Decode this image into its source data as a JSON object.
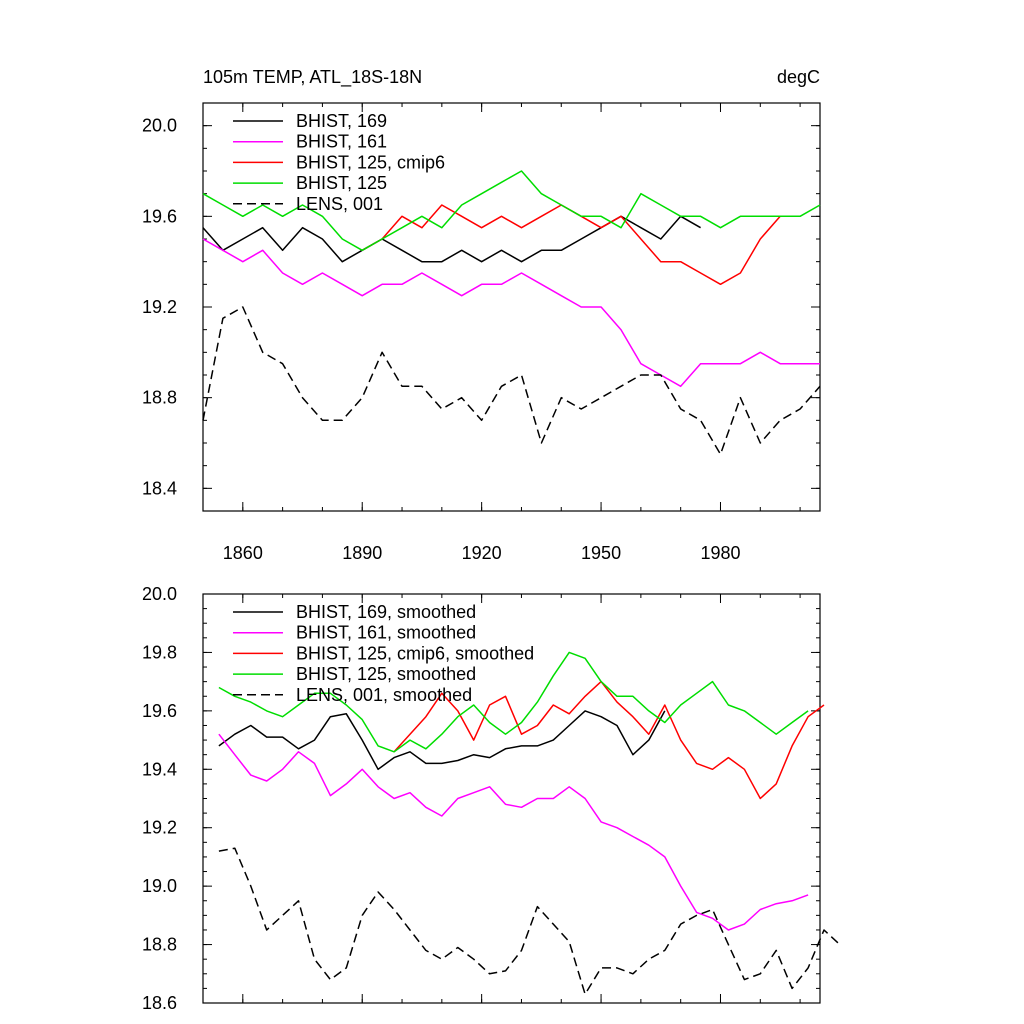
{
  "header": {
    "title": "105m TEMP, ATL_18S-18N",
    "units": "degC"
  },
  "colors": {
    "BHIST_169": "#000000",
    "BHIST_161": "#ff00ff",
    "BHIST_125_cmip6": "#ff0000",
    "BHIST_125": "#00dd00",
    "LENS_001": "#000000"
  },
  "chart_data": [
    {
      "type": "line",
      "xlim": [
        1850,
        2005
      ],
      "ylim": [
        18.3,
        20.1
      ],
      "xticks": [
        1860,
        1890,
        1920,
        1950,
        1980
      ],
      "yticks": [
        18.4,
        18.8,
        19.2,
        19.6,
        20.0
      ],
      "ytick_labels": [
        "18.4",
        "18.8",
        "19.2",
        "19.6",
        "20.0"
      ],
      "xtick_labels": [
        "1860",
        "1890",
        "1920",
        "1950",
        "1980"
      ],
      "legend_position": "top-left",
      "series": [
        {
          "name": "BHIST, 169",
          "color": "#000000",
          "dash": false,
          "x0": 1850,
          "dx": 5,
          "values": [
            19.55,
            19.45,
            19.5,
            19.55,
            19.45,
            19.55,
            19.5,
            19.4,
            19.45,
            19.5,
            19.45,
            19.4,
            19.4,
            19.45,
            19.4,
            19.45,
            19.4,
            19.45,
            19.45,
            19.5,
            19.55,
            19.6,
            19.55,
            19.5,
            19.6,
            19.55
          ]
        },
        {
          "name": "BHIST, 161",
          "color": "#ff00ff",
          "dash": false,
          "x0": 1850,
          "dx": 5,
          "values": [
            19.5,
            19.45,
            19.4,
            19.45,
            19.35,
            19.3,
            19.35,
            19.3,
            19.25,
            19.3,
            19.3,
            19.35,
            19.3,
            19.25,
            19.3,
            19.3,
            19.35,
            19.3,
            19.25,
            19.2,
            19.2,
            19.1,
            18.95,
            18.9,
            18.85,
            18.95,
            18.95,
            18.95,
            19.0,
            18.95,
            18.95,
            18.95
          ]
        },
        {
          "name": "BHIST, 125, cmip6",
          "color": "#ff0000",
          "dash": false,
          "x0": 1890,
          "dx": 5,
          "values": [
            19.45,
            19.5,
            19.6,
            19.55,
            19.65,
            19.6,
            19.55,
            19.6,
            19.55,
            19.6,
            19.65,
            19.6,
            19.55,
            19.6,
            19.5,
            19.4,
            19.4,
            19.35,
            19.3,
            19.35,
            19.5,
            19.6
          ]
        },
        {
          "name": "BHIST, 125",
          "color": "#00dd00",
          "dash": false,
          "x0": 1850,
          "dx": 5,
          "values": [
            19.7,
            19.65,
            19.6,
            19.65,
            19.6,
            19.65,
            19.6,
            19.5,
            19.45,
            19.5,
            19.55,
            19.6,
            19.55,
            19.65,
            19.7,
            19.75,
            19.8,
            19.7,
            19.65,
            19.6,
            19.6,
            19.55,
            19.7,
            19.65,
            19.6,
            19.6,
            19.55,
            19.6,
            19.6,
            19.6,
            19.6,
            19.65
          ]
        },
        {
          "name": "LENS, 001",
          "color": "#000000",
          "dash": true,
          "x0": 1850,
          "dx": 5,
          "values": [
            18.7,
            19.15,
            19.2,
            19.0,
            18.95,
            18.8,
            18.7,
            18.7,
            18.8,
            19.0,
            18.85,
            18.85,
            18.75,
            18.8,
            18.7,
            18.85,
            18.9,
            18.6,
            18.8,
            18.75,
            18.8,
            18.85,
            18.9,
            18.9,
            18.75,
            18.7,
            18.55,
            18.8,
            18.6,
            18.7,
            18.75,
            18.85
          ]
        }
      ]
    },
    {
      "type": "line",
      "xlim": [
        1850,
        2005
      ],
      "ylim": [
        18.6,
        20.0
      ],
      "xticks": [
        1860,
        1890,
        1920,
        1950,
        1980
      ],
      "yticks": [
        18.6,
        18.8,
        19.0,
        19.2,
        19.4,
        19.6,
        19.8,
        20.0
      ],
      "ytick_labels": [
        "18.6",
        "18.8",
        "19.0",
        "19.2",
        "19.4",
        "19.6",
        "19.8",
        "20.0"
      ],
      "legend_position": "top-left",
      "series": [
        {
          "name": "BHIST, 169, smoothed",
          "color": "#000000",
          "dash": false,
          "x0": 1854,
          "dx": 4,
          "values": [
            19.48,
            19.52,
            19.55,
            19.51,
            19.51,
            19.47,
            19.5,
            19.58,
            19.59,
            19.5,
            19.4,
            19.44,
            19.46,
            19.42,
            19.42,
            19.43,
            19.45,
            19.44,
            19.47,
            19.48,
            19.48,
            19.5,
            19.55,
            19.6,
            19.58,
            19.55,
            19.45,
            19.5,
            19.6
          ]
        },
        {
          "name": "BHIST, 161, smoothed",
          "color": "#ff00ff",
          "dash": false,
          "x0": 1854,
          "dx": 4,
          "values": [
            19.52,
            19.45,
            19.38,
            19.36,
            19.4,
            19.46,
            19.42,
            19.31,
            19.35,
            19.4,
            19.34,
            19.3,
            19.32,
            19.27,
            19.24,
            19.3,
            19.32,
            19.34,
            19.28,
            19.27,
            19.3,
            19.3,
            19.34,
            19.3,
            19.22,
            19.2,
            19.17,
            19.14,
            19.1,
            19.0,
            18.91,
            18.89,
            18.85,
            18.87,
            18.92,
            18.94,
            18.95,
            18.97
          ]
        },
        {
          "name": "BHIST, 125, cmip6, smoothed",
          "color": "#ff0000",
          "dash": false,
          "x0": 1898,
          "dx": 4,
          "values": [
            19.46,
            19.52,
            19.58,
            19.66,
            19.6,
            19.5,
            19.62,
            19.65,
            19.52,
            19.55,
            19.62,
            19.59,
            19.65,
            19.7,
            19.63,
            19.58,
            19.52,
            19.62,
            19.5,
            19.42,
            19.4,
            19.44,
            19.4,
            19.3,
            19.35,
            19.48,
            19.58,
            19.62
          ]
        },
        {
          "name": "BHIST, 125, smoothed",
          "color": "#00dd00",
          "dash": false,
          "x0": 1854,
          "dx": 4,
          "values": [
            19.68,
            19.65,
            19.63,
            19.6,
            19.58,
            19.62,
            19.66,
            19.66,
            19.62,
            19.57,
            19.48,
            19.46,
            19.5,
            19.47,
            19.52,
            19.58,
            19.62,
            19.56,
            19.52,
            19.56,
            19.63,
            19.72,
            19.8,
            19.78,
            19.7,
            19.65,
            19.65,
            19.6,
            19.56,
            19.62,
            19.66,
            19.7,
            19.62,
            19.6,
            19.56,
            19.52,
            19.56,
            19.6
          ]
        },
        {
          "name": "LENS, 001, smoothed",
          "color": "#000000",
          "dash": true,
          "x0": 1854,
          "dx": 4,
          "values": [
            19.12,
            19.13,
            19.0,
            18.85,
            18.9,
            18.95,
            18.75,
            18.68,
            18.72,
            18.9,
            18.98,
            18.92,
            18.85,
            18.78,
            18.75,
            18.79,
            18.75,
            18.7,
            18.71,
            18.78,
            18.93,
            18.87,
            18.81,
            18.63,
            18.72,
            18.72,
            18.7,
            18.75,
            18.78,
            18.87,
            18.9,
            18.92,
            18.8,
            18.68,
            18.7,
            18.78,
            18.65,
            18.72,
            18.85,
            18.8
          ]
        }
      ]
    }
  ]
}
